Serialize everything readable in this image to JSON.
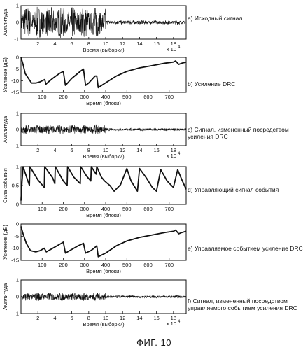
{
  "figure_title": "ФИГ. 10",
  "chart_data": [
    {
      "type": "line",
      "id": "a",
      "caption": "a) Исходный сигнал",
      "ylabel": "Амплитуда",
      "xlabel": "Время (выборки)",
      "x_multiplier": "x 10",
      "x_multiplier_exp": "4",
      "xlim": [
        0,
        19.5
      ],
      "ylim": [
        -1,
        1
      ],
      "xticks": [
        2,
        4,
        6,
        8,
        10,
        12,
        14,
        16,
        18
      ],
      "yticks": [
        -1,
        0,
        1
      ],
      "signal": {
        "kind": "noise",
        "segments": [
          [
            0,
            10,
            0.95
          ],
          [
            10,
            19.5,
            0.12
          ]
        ]
      }
    },
    {
      "type": "line",
      "id": "b",
      "caption": "b) Усиление DRC",
      "ylabel": "Усиление (дБ)",
      "xlabel": "Время (блоки)",
      "xlim": [
        0,
        780
      ],
      "ylim": [
        -15,
        0
      ],
      "xticks": [
        100,
        200,
        300,
        400,
        500,
        600,
        700
      ],
      "yticks": [
        -15,
        -10,
        -5,
        0
      ],
      "series": [
        {
          "x": [
            0,
            10,
            20,
            35,
            50,
            70,
            90,
            112,
            118,
            130,
            150,
            180,
            200,
            210,
            220,
            240,
            260,
            280,
            295,
            305,
            320,
            340,
            350,
            358,
            365,
            390,
            450,
            500,
            560,
            620,
            680,
            720,
            730,
            745,
            760,
            780
          ],
          "y": [
            0,
            -3,
            -7,
            -9,
            -11,
            -11,
            -10.5,
            -9.5,
            -11.5,
            -10.5,
            -9,
            -7,
            -6,
            -12,
            -11,
            -9,
            -7.5,
            -6,
            -5,
            -12,
            -11,
            -9,
            -8,
            -8,
            -13,
            -11.5,
            -8,
            -6,
            -4.5,
            -3.5,
            -2.5,
            -2,
            -1.5,
            -3,
            -2.5,
            -2
          ]
        }
      ]
    },
    {
      "type": "line",
      "id": "c",
      "caption": "c) Сигнал, измененный посредством усиления DRC",
      "ylabel": "Амплитуда",
      "xlabel": "Время (выборки)",
      "x_multiplier": "x 10",
      "x_multiplier_exp": "4",
      "xlim": [
        0,
        19.5
      ],
      "ylim": [
        -1,
        1
      ],
      "xticks": [
        2,
        4,
        6,
        8,
        10,
        12,
        14,
        16,
        18
      ],
      "yticks": [
        -1,
        0,
        1
      ],
      "signal": {
        "kind": "noise",
        "segments": [
          [
            0,
            10,
            0.3
          ],
          [
            10,
            19.5,
            0.08
          ]
        ]
      }
    },
    {
      "type": "line",
      "id": "d",
      "caption": "d) Управляющий сигнал события",
      "ylabel": "Сила события",
      "xlabel": "Время (блоки)",
      "xlim": [
        0,
        780
      ],
      "ylim": [
        0,
        1
      ],
      "xticks": [
        100,
        200,
        300,
        400,
        500,
        600,
        700
      ],
      "yticks": [
        0,
        0.5,
        1
      ],
      "series": [
        {
          "x": [
            0,
            5,
            10,
            40,
            42,
            80,
            110,
            112,
            150,
            160,
            162,
            200,
            218,
            220,
            250,
            280,
            282,
            310,
            330,
            332,
            355,
            358,
            380,
            395,
            420,
            440,
            470,
            500,
            520,
            550,
            560,
            590,
            620,
            640,
            660,
            690,
            720,
            740,
            760,
            780
          ],
          "y": [
            0.1,
            0.6,
            1,
            0.5,
            1,
            0.65,
            0.45,
            1,
            0.7,
            0.55,
            1,
            0.62,
            0.5,
            1,
            0.72,
            0.55,
            1,
            0.75,
            0.62,
            1,
            0.8,
            1,
            0.72,
            0.62,
            0.5,
            0.35,
            0.52,
            0.95,
            0.62,
            0.35,
            0.95,
            0.72,
            0.45,
            0.35,
            0.92,
            0.62,
            0.45,
            0.92,
            0.65,
            0.4
          ]
        }
      ]
    },
    {
      "type": "line",
      "id": "e",
      "caption": "e) Управляемое событием усиление DRC",
      "ylabel": "Усиление (дБ)",
      "xlabel": "Время (блоки)",
      "xlim": [
        0,
        780
      ],
      "ylim": [
        -15,
        0
      ],
      "xticks": [
        100,
        200,
        300,
        400,
        500,
        600,
        700
      ],
      "yticks": [
        -15,
        -10,
        -5,
        0
      ],
      "series": [
        {
          "x": [
            0,
            10,
            25,
            45,
            70,
            90,
            110,
            120,
            150,
            180,
            200,
            210,
            240,
            270,
            295,
            305,
            330,
            345,
            358,
            365,
            400,
            450,
            500,
            560,
            620,
            680,
            720,
            730,
            745,
            760,
            780
          ],
          "y": [
            -1,
            -4,
            -8,
            -11,
            -11.5,
            -11,
            -10,
            -11.5,
            -10,
            -8.5,
            -7.5,
            -12,
            -10.5,
            -9,
            -8,
            -12,
            -11,
            -10,
            -9,
            -13.5,
            -12,
            -9,
            -7,
            -5.5,
            -4.5,
            -3.5,
            -3,
            -2.5,
            -4,
            -3.5,
            -3
          ]
        }
      ]
    },
    {
      "type": "line",
      "id": "f",
      "caption": "f) Сигнал, измененный посредством управляемого событием усиления DRC",
      "ylabel": "Амплитуда",
      "xlabel": "Время (выборки)",
      "x_multiplier": "x 10",
      "x_multiplier_exp": "4",
      "xlim": [
        0,
        19.5
      ],
      "ylim": [
        -1,
        1
      ],
      "xticks": [
        2,
        4,
        6,
        8,
        10,
        12,
        14,
        16,
        18
      ],
      "yticks": [
        -1,
        0,
        1
      ],
      "signal": {
        "kind": "noise",
        "segments": [
          [
            0,
            10,
            0.25
          ],
          [
            10,
            19.5,
            0.08
          ]
        ]
      }
    }
  ]
}
